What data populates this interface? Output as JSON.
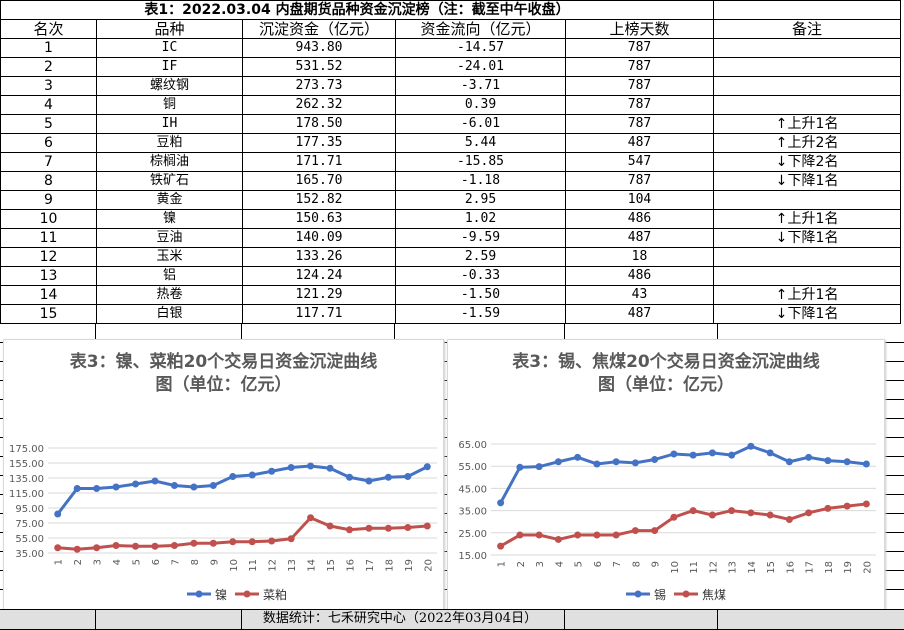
{
  "table": {
    "title": "表1：2022.03.04 内盘期货品种资金沉淀榜（注：截至中午收盘）",
    "headers": [
      "名次",
      "品种",
      "沉淀资金（亿元）",
      "资金流向（亿元）",
      "上榜天数",
      "备注"
    ],
    "rows": [
      {
        "rank": "1",
        "name": "IC",
        "capital": "943.80",
        "flow": "-14.57",
        "days": "787",
        "note_arrow": "",
        "note": ""
      },
      {
        "rank": "2",
        "name": "IF",
        "capital": "531.52",
        "flow": "-24.01",
        "days": "787",
        "note_arrow": "",
        "note": ""
      },
      {
        "rank": "3",
        "name": "螺纹钢",
        "capital": "273.73",
        "flow": "-3.71",
        "days": "787",
        "note_arrow": "",
        "note": ""
      },
      {
        "rank": "4",
        "name": "铜",
        "capital": "262.32",
        "flow": "0.39",
        "days": "787",
        "note_arrow": "",
        "note": ""
      },
      {
        "rank": "5",
        "name": "IH",
        "capital": "178.50",
        "flow": "-6.01",
        "days": "787",
        "note_arrow": "↑",
        "note": "上升1名"
      },
      {
        "rank": "6",
        "name": "豆粕",
        "capital": "177.35",
        "flow": "5.44",
        "days": "487",
        "note_arrow": "↑",
        "note": "上升2名"
      },
      {
        "rank": "7",
        "name": "棕榈油",
        "capital": "171.71",
        "flow": "-15.85",
        "days": "547",
        "note_arrow": "↓",
        "note": "下降2名"
      },
      {
        "rank": "8",
        "name": "铁矿石",
        "capital": "165.70",
        "flow": "-1.18",
        "days": "787",
        "note_arrow": "↓",
        "note": "下降1名"
      },
      {
        "rank": "9",
        "name": "黄金",
        "capital": "152.82",
        "flow": "2.95",
        "days": "104",
        "note_arrow": "",
        "note": ""
      },
      {
        "rank": "10",
        "name": "镍",
        "capital": "150.63",
        "flow": "1.02",
        "days": "486",
        "note_arrow": "↑",
        "note": "上升1名"
      },
      {
        "rank": "11",
        "name": "豆油",
        "capital": "140.09",
        "flow": "-9.59",
        "days": "487",
        "note_arrow": "↓",
        "note": "下降1名"
      },
      {
        "rank": "12",
        "name": "玉米",
        "capital": "133.26",
        "flow": "2.59",
        "days": "18",
        "note_arrow": "",
        "note": ""
      },
      {
        "rank": "13",
        "name": "铝",
        "capital": "124.24",
        "flow": "-0.33",
        "days": "486",
        "note_arrow": "",
        "note": ""
      },
      {
        "rank": "14",
        "name": "热卷",
        "capital": "121.29",
        "flow": "-1.50",
        "days": "43",
        "note_arrow": "↑",
        "note": "上升1名"
      },
      {
        "rank": "15",
        "name": "白银",
        "capital": "117.71",
        "flow": "-1.59",
        "days": "487",
        "note_arrow": "↓",
        "note": "下降1名"
      }
    ]
  },
  "chart_data": [
    {
      "type": "line",
      "title_line1": "表3：镍、菜粕20个交易日资金沉淀曲线",
      "title_line2": "图（单位：亿元）",
      "x": [
        "1",
        "2",
        "3",
        "4",
        "5",
        "6",
        "7",
        "8",
        "9",
        "10",
        "11",
        "12",
        "13",
        "14",
        "15",
        "16",
        "17",
        "18",
        "19",
        "20"
      ],
      "y_ticks": [
        "35.00",
        "55.00",
        "75.00",
        "95.00",
        "115.00",
        "135.00",
        "155.00",
        "175.00"
      ],
      "ylim": [
        35,
        175
      ],
      "legend_position": "bottom",
      "series": [
        {
          "name": "镍",
          "color": "#4472c4",
          "values": [
            87,
            121,
            121,
            123,
            127,
            131,
            125,
            123,
            125,
            137,
            139,
            144,
            149,
            151,
            148,
            136,
            131,
            136,
            137,
            150
          ]
        },
        {
          "name": "菜粕",
          "color": "#c0504d",
          "values": [
            42,
            40,
            42,
            45,
            44,
            44,
            45,
            48,
            48,
            50,
            50,
            51,
            54,
            82,
            71,
            66,
            68,
            68,
            69,
            71
          ]
        }
      ]
    },
    {
      "type": "line",
      "title_line1": "表3：锡、焦煤20个交易日资金沉淀曲线",
      "title_line2": "图（单位：亿元）",
      "x": [
        "1",
        "2",
        "3",
        "4",
        "5",
        "6",
        "7",
        "8",
        "9",
        "10",
        "11",
        "12",
        "13",
        "14",
        "15",
        "16",
        "17",
        "18",
        "19",
        "20"
      ],
      "y_ticks": [
        "15.00",
        "25.00",
        "35.00",
        "45.00",
        "55.00",
        "65.00"
      ],
      "ylim": [
        15,
        65
      ],
      "legend_position": "bottom",
      "series": [
        {
          "name": "锡",
          "color": "#4472c4",
          "values": [
            38.5,
            54.5,
            54.8,
            57,
            59,
            56,
            57,
            56.5,
            58,
            60.5,
            60,
            61,
            60,
            64,
            61,
            57,
            59,
            57.5,
            57,
            56
          ]
        },
        {
          "name": "焦煤",
          "color": "#c0504d",
          "values": [
            19,
            24,
            24,
            22,
            24,
            24,
            24,
            26,
            26,
            32,
            35,
            33,
            35,
            34,
            33,
            31,
            34,
            36,
            37,
            38
          ]
        }
      ]
    }
  ],
  "footer": {
    "text": "数据统计：七禾研究中心（2022年03月04日）"
  },
  "colors": {
    "footer_bg": "#e0e0e0",
    "blue": "#4472c4",
    "red": "#c0504d"
  }
}
